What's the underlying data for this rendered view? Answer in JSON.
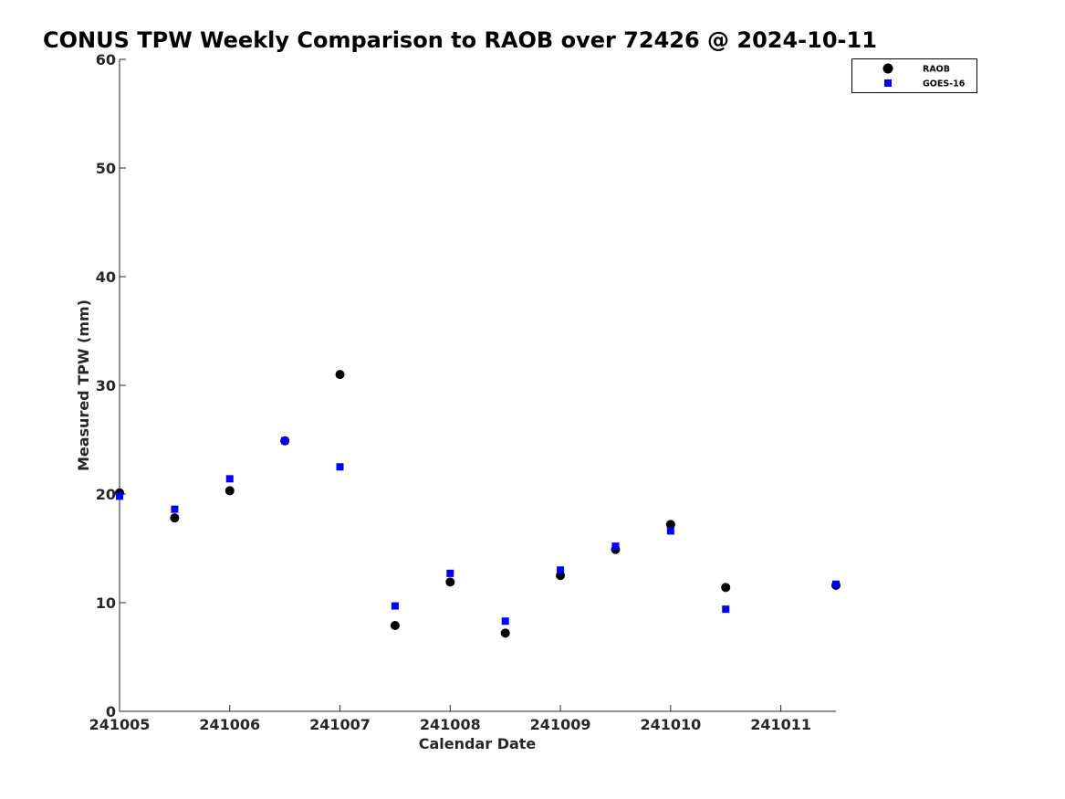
{
  "chart_data": {
    "type": "scatter",
    "title": "CONUS TPW Weekly Comparison to RAOB over 72426 @ 2024-10-11",
    "xlabel": "Calendar Date",
    "ylabel": "Measured TPW (mm)",
    "xlim": [
      "2024-10-05 00:00",
      "2024-10-11 12:00"
    ],
    "ylim": [
      0,
      60
    ],
    "x_ticks": [
      "241005",
      "241006",
      "241007",
      "241008",
      "241009",
      "241010",
      "241011"
    ],
    "y_ticks": [
      "0",
      "10",
      "20",
      "30",
      "40",
      "50",
      "60"
    ],
    "grid": false,
    "legend_position": "top-right",
    "series": [
      {
        "name": "RAOB",
        "marker": "circle",
        "color": "#000000",
        "points": [
          {
            "x": "2024-10-05 00:00",
            "y": 20.1
          },
          {
            "x": "2024-10-05 12:00",
            "y": 17.8
          },
          {
            "x": "2024-10-06 00:00",
            "y": 20.3
          },
          {
            "x": "2024-10-06 12:00",
            "y": 24.9
          },
          {
            "x": "2024-10-07 00:00",
            "y": 31.0
          },
          {
            "x": "2024-10-07 12:00",
            "y": 7.9
          },
          {
            "x": "2024-10-08 00:00",
            "y": 11.9
          },
          {
            "x": "2024-10-08 12:00",
            "y": 7.2
          },
          {
            "x": "2024-10-09 00:00",
            "y": 12.5
          },
          {
            "x": "2024-10-09 12:00",
            "y": 14.9
          },
          {
            "x": "2024-10-10 00:00",
            "y": 17.2
          },
          {
            "x": "2024-10-10 12:00",
            "y": 11.4
          },
          {
            "x": "2024-10-11 12:00",
            "y": 11.6
          }
        ]
      },
      {
        "name": "GOES-16",
        "marker": "square",
        "color": "#0000ff",
        "points": [
          {
            "x": "2024-10-05 00:00",
            "y": 19.8
          },
          {
            "x": "2024-10-05 12:00",
            "y": 18.6
          },
          {
            "x": "2024-10-06 00:00",
            "y": 21.4
          },
          {
            "x": "2024-10-06 12:00",
            "y": 24.9
          },
          {
            "x": "2024-10-07 00:00",
            "y": 22.5
          },
          {
            "x": "2024-10-07 12:00",
            "y": 9.7
          },
          {
            "x": "2024-10-08 00:00",
            "y": 12.7
          },
          {
            "x": "2024-10-08 12:00",
            "y": 8.3
          },
          {
            "x": "2024-10-09 00:00",
            "y": 13.0
          },
          {
            "x": "2024-10-09 12:00",
            "y": 15.2
          },
          {
            "x": "2024-10-10 00:00",
            "y": 16.6
          },
          {
            "x": "2024-10-10 12:00",
            "y": 9.4
          },
          {
            "x": "2024-10-11 12:00",
            "y": 11.7
          }
        ]
      }
    ]
  }
}
